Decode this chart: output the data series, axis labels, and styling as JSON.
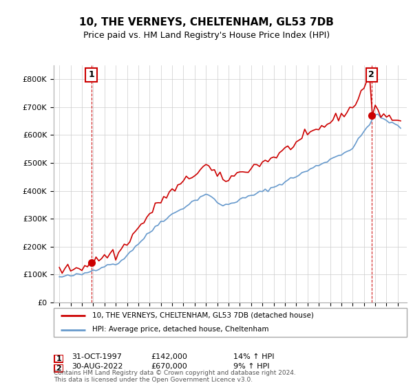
{
  "title": "10, THE VERNEYS, CHELTENHAM, GL53 7DB",
  "subtitle": "Price paid vs. HM Land Registry's House Price Index (HPI)",
  "red_label": "10, THE VERNEYS, CHELTENHAM, GL53 7DB (detached house)",
  "blue_label": "HPI: Average price, detached house, Cheltenham",
  "annotation1_date": "31-OCT-1997",
  "annotation1_price": "£142,000",
  "annotation1_hpi": "14% ↑ HPI",
  "annotation2_date": "30-AUG-2022",
  "annotation2_price": "£670,000",
  "annotation2_hpi": "9% ↑ HPI",
  "footer": "Contains HM Land Registry data © Crown copyright and database right 2024.\nThis data is licensed under the Open Government Licence v3.0.",
  "ylim": [
    0,
    850000
  ],
  "sale1_year": 1997.83,
  "sale1_price": 142000,
  "sale2_year": 2022.67,
  "sale2_price": 670000,
  "red_color": "#cc0000",
  "blue_color": "#6699cc",
  "vline_color": "#cc0000",
  "background_color": "#ffffff",
  "grid_color": "#cccccc"
}
